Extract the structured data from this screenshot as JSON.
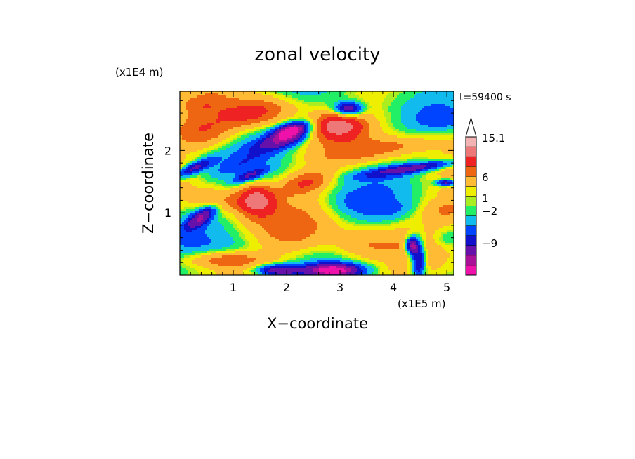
{
  "chart_data": {
    "type": "heatmap",
    "title": "zonal velocity",
    "xlabel": "X−coordinate",
    "ylabel": "Z−coordinate",
    "x_unit_label": "(x1E5 m)",
    "y_unit_label": "(x1E4 m)",
    "time_label": "t=59400 s",
    "xlim": [
      0,
      5.13
    ],
    "ylim": [
      0,
      2.95
    ],
    "x_ticks": [
      {
        "value": 1,
        "label": "1"
      },
      {
        "value": 2,
        "label": "2"
      },
      {
        "value": 3,
        "label": "3"
      },
      {
        "value": 4,
        "label": "4"
      },
      {
        "value": 5,
        "label": "5"
      }
    ],
    "y_ticks": [
      {
        "value": 1,
        "label": "1"
      },
      {
        "value": 2,
        "label": "2"
      }
    ],
    "colorbar": {
      "levels": [
        -9,
        -2,
        1,
        6,
        15.1
      ],
      "level_labels": [
        "15.1",
        "6",
        "1",
        "−2",
        "−9"
      ],
      "colors_bottom_to_top": [
        "#ee11aa",
        "#aa1199",
        "#6611aa",
        "#1111cc",
        "#0044ff",
        "#11bbee",
        "#22ee66",
        "#aaee22",
        "#eeee00",
        "#ffbb33",
        "#ee6611",
        "#ee2222",
        "#ee7777",
        "#f3b3b3"
      ]
    }
  }
}
